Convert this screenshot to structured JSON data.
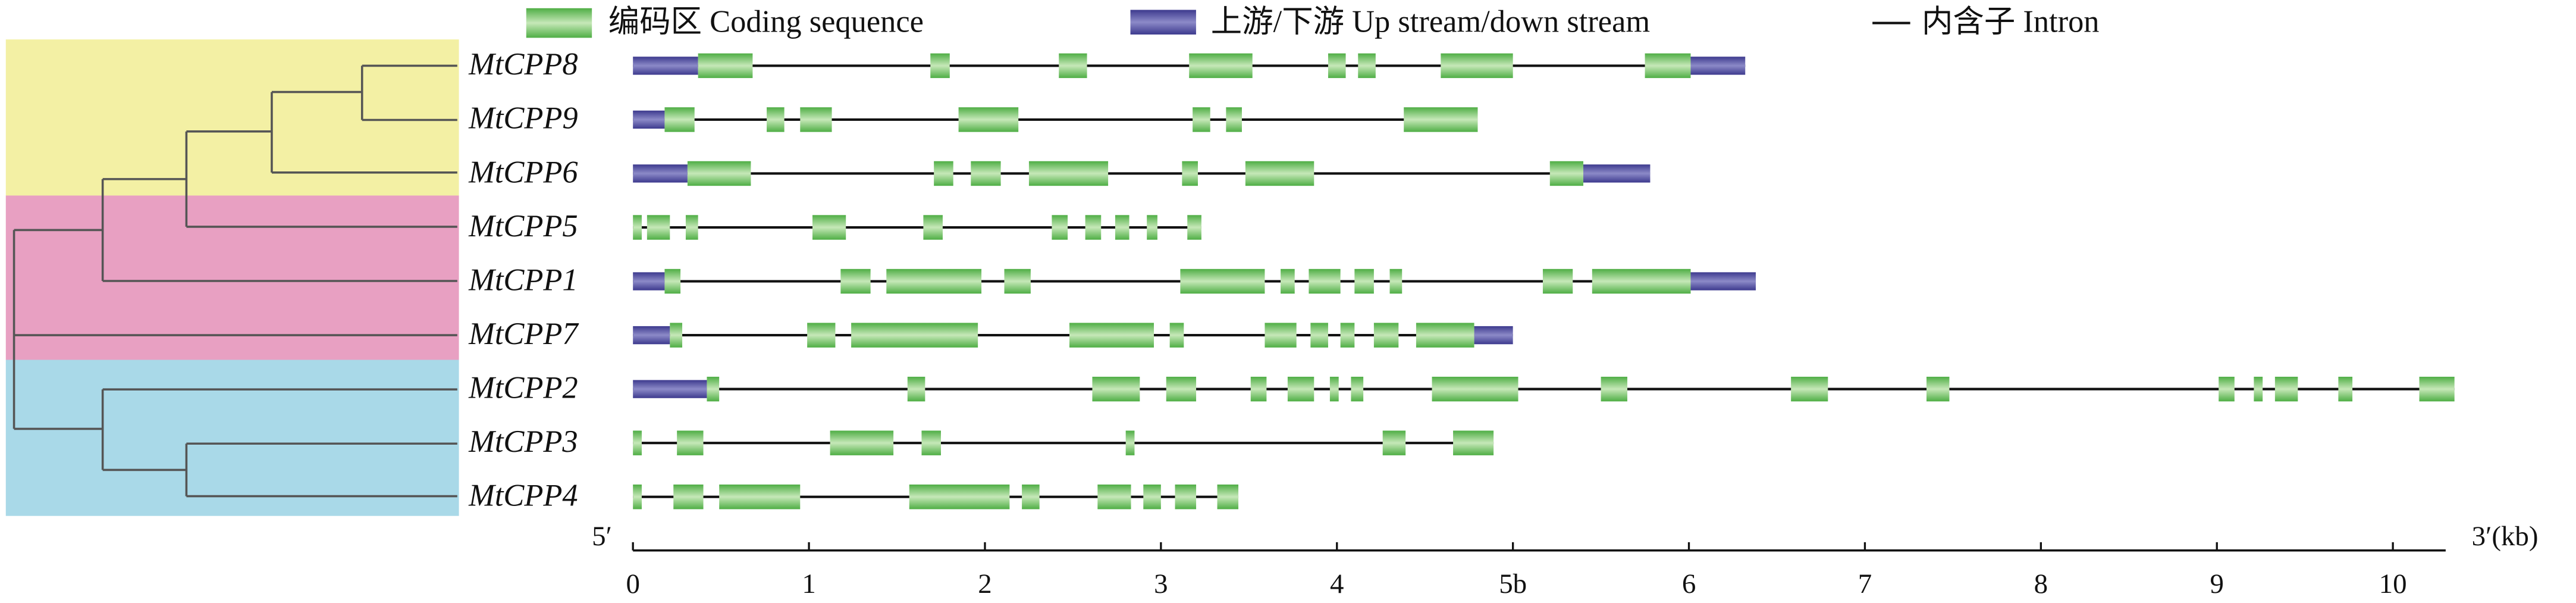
{
  "chart_data": {
    "type": "gene-structure",
    "legend": {
      "cds": "编码区 Coding sequence",
      "utr": "上游/下游 Up stream/down stream",
      "intron": "内含子 Intron"
    },
    "cds_color": "#4fae45",
    "utr_color": "#3d3a8e",
    "intron_color": "#111111",
    "x_start_label": "5′",
    "x_end_label": "3′(kb)",
    "xlim": [
      0,
      10.3
    ],
    "xticks": [
      0,
      1,
      2,
      3,
      4,
      {
        "value": 5,
        "label": "5b"
      },
      6,
      7,
      8,
      9,
      10
    ],
    "genes": [
      {
        "name": "MtCPP8",
        "utr": [
          [
            0,
            0.37
          ],
          [
            6.01,
            6.32
          ]
        ],
        "cds": [
          [
            0.37,
            0.68
          ],
          [
            1.69,
            1.8
          ],
          [
            2.42,
            2.58
          ],
          [
            3.16,
            3.52
          ],
          [
            3.95,
            4.05
          ],
          [
            4.12,
            4.22
          ],
          [
            4.59,
            5.0
          ],
          [
            5.75,
            6.01
          ]
        ]
      },
      {
        "name": "MtCPP9",
        "utr": [
          [
            0,
            0.18
          ]
        ],
        "cds": [
          [
            0.18,
            0.35
          ],
          [
            0.76,
            0.86
          ],
          [
            0.95,
            1.13
          ],
          [
            1.85,
            2.19
          ],
          [
            3.18,
            3.28
          ],
          [
            3.37,
            3.46
          ],
          [
            4.38,
            4.8
          ]
        ]
      },
      {
        "name": "MtCPP6",
        "utr": [
          [
            0,
            0.31
          ],
          [
            5.4,
            5.78
          ]
        ],
        "cds": [
          [
            0.31,
            0.67
          ],
          [
            1.71,
            1.82
          ],
          [
            1.92,
            2.09
          ],
          [
            2.25,
            2.7
          ],
          [
            3.12,
            3.21
          ],
          [
            3.48,
            3.87
          ],
          [
            5.21,
            5.4
          ]
        ]
      },
      {
        "name": "MtCPP5",
        "utr": [],
        "cds": [
          [
            0,
            0.05
          ],
          [
            0.08,
            0.21
          ],
          [
            0.3,
            0.37
          ],
          [
            1.02,
            1.21
          ],
          [
            1.65,
            1.76
          ],
          [
            2.38,
            2.47
          ],
          [
            2.57,
            2.66
          ],
          [
            2.74,
            2.82
          ],
          [
            2.92,
            2.98
          ],
          [
            3.15,
            3.23
          ]
        ]
      },
      {
        "name": "MtCPP1",
        "utr": [
          [
            0,
            0.18
          ],
          [
            6.01,
            6.38
          ]
        ],
        "cds": [
          [
            0.18,
            0.27
          ],
          [
            1.18,
            1.35
          ],
          [
            1.44,
            1.98
          ],
          [
            2.11,
            2.26
          ],
          [
            3.11,
            3.59
          ],
          [
            3.68,
            3.76
          ],
          [
            3.84,
            4.02
          ],
          [
            4.1,
            4.21
          ],
          [
            4.3,
            4.37
          ],
          [
            5.17,
            5.34
          ],
          [
            5.45,
            6.01
          ]
        ]
      },
      {
        "name": "MtCPP7",
        "utr": [
          [
            0,
            0.21
          ],
          [
            4.78,
            5.0
          ]
        ],
        "cds": [
          [
            0.21,
            0.28
          ],
          [
            0.99,
            1.15
          ],
          [
            1.24,
            1.96
          ],
          [
            2.48,
            2.96
          ],
          [
            3.05,
            3.13
          ],
          [
            3.59,
            3.77
          ],
          [
            3.85,
            3.95
          ],
          [
            4.02,
            4.1
          ],
          [
            4.21,
            4.35
          ],
          [
            4.45,
            4.78
          ]
        ]
      },
      {
        "name": "MtCPP2",
        "utr": [
          [
            0,
            0.42
          ]
        ],
        "cds": [
          [
            0.42,
            0.49
          ],
          [
            1.56,
            1.66
          ],
          [
            2.61,
            2.88
          ],
          [
            3.03,
            3.2
          ],
          [
            3.51,
            3.6
          ],
          [
            3.72,
            3.87
          ],
          [
            3.96,
            4.01
          ],
          [
            4.08,
            4.15
          ],
          [
            4.54,
            5.03
          ],
          [
            5.5,
            5.65
          ],
          [
            6.58,
            6.79
          ],
          [
            7.35,
            7.48
          ],
          [
            9.01,
            9.1
          ],
          [
            9.21,
            9.26
          ],
          [
            9.33,
            9.46
          ],
          [
            9.69,
            9.77
          ],
          [
            10.15,
            10.35
          ]
        ]
      },
      {
        "name": "MtCPP3",
        "utr": [],
        "cds": [
          [
            0,
            0.05
          ],
          [
            0.25,
            0.4
          ],
          [
            1.12,
            1.48
          ],
          [
            1.64,
            1.75
          ],
          [
            2.8,
            2.85
          ],
          [
            4.26,
            4.39
          ],
          [
            4.66,
            4.89
          ]
        ]
      },
      {
        "name": "MtCPP4",
        "utr": [],
        "cds": [
          [
            0,
            0.05
          ],
          [
            0.23,
            0.4
          ],
          [
            0.49,
            0.95
          ],
          [
            1.57,
            2.14
          ],
          [
            2.21,
            2.31
          ],
          [
            2.64,
            2.83
          ],
          [
            2.9,
            3.0
          ],
          [
            3.08,
            3.2
          ],
          [
            3.32,
            3.44
          ]
        ]
      }
    ]
  }
}
